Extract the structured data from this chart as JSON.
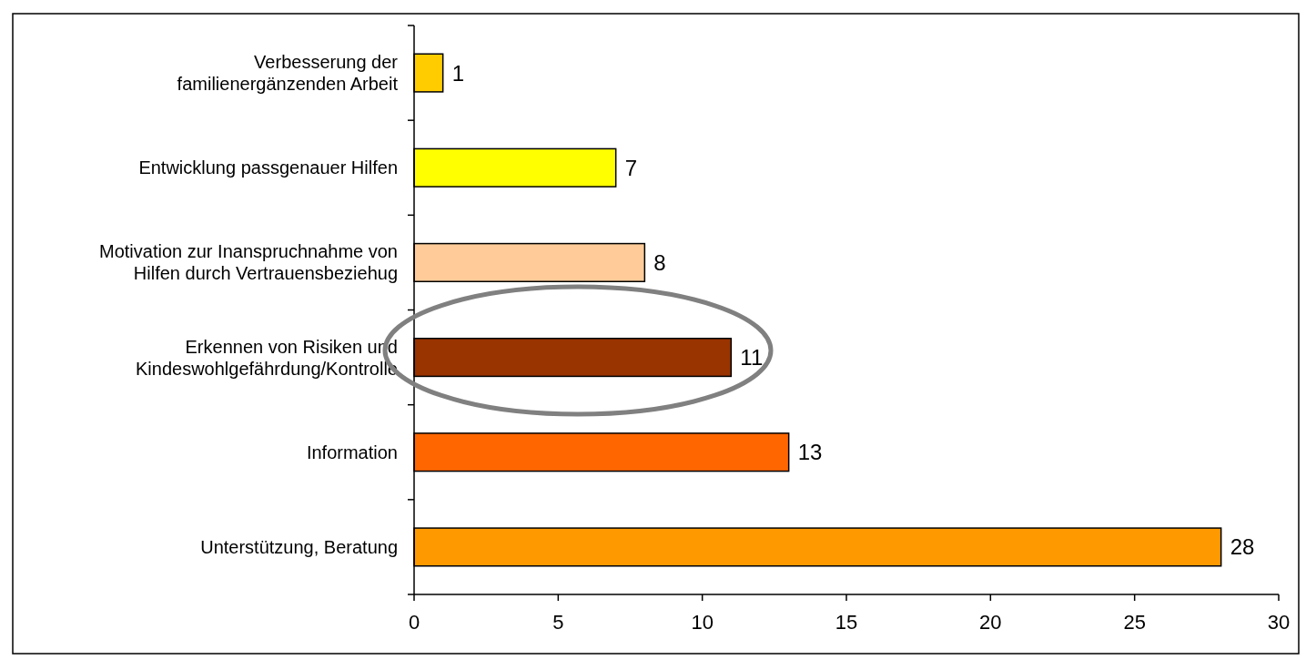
{
  "chart_data": {
    "type": "bar",
    "orientation": "horizontal",
    "categories": [
      "Verbesserung der familienergänzenden Arbeit",
      "Entwicklung passgenauer Hilfen",
      "Motivation zur Inanspruchnahme von Hilfen durch Vertrauensbeziehug",
      "Erkennen von Risiken und Kindeswohlgefährdung/Kontrolle",
      "Information",
      "Unterstützung, Beratung"
    ],
    "values": [
      1,
      7,
      8,
      11,
      13,
      28
    ],
    "colors": [
      "#ffcc00",
      "#ffff00",
      "#ffcc99",
      "#993300",
      "#ff6600",
      "#ff9900"
    ],
    "xlim": [
      0,
      30
    ],
    "xticks": [
      0,
      5,
      10,
      15,
      20,
      25,
      30
    ],
    "data_labels": true
  }
}
